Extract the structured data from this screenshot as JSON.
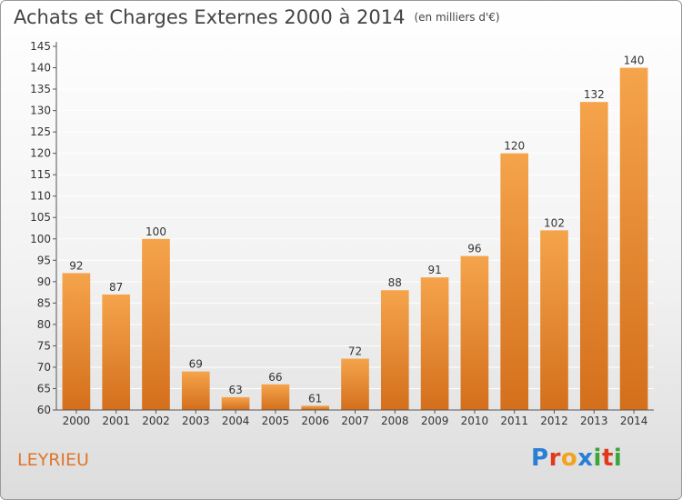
{
  "header": {
    "title": "Achats et Charges Externes 2000 à 2014",
    "unit": "(en milliers d'€)"
  },
  "footer": {
    "place": "LEYRIEU",
    "brand": "Proxiti",
    "brand_colors": [
      "#2a7fd4",
      "#e03a1e",
      "#f3a21b",
      "#2a7fd4",
      "#3aa63a",
      "#e03a1e",
      "#3aa63a"
    ]
  },
  "colors": {
    "bar_light": "#f5a44c",
    "bar_dark": "#d46f1c",
    "grid": "#ffffff",
    "axis": "#555555"
  },
  "chart_data": {
    "type": "bar",
    "title": "Achats et Charges Externes 2000 à 2014",
    "subtitle": "(en milliers d'€)",
    "xlabel": "",
    "ylabel": "",
    "categories": [
      "2000",
      "2001",
      "2002",
      "2003",
      "2004",
      "2005",
      "2006",
      "2007",
      "2008",
      "2009",
      "2010",
      "2011",
      "2012",
      "2013",
      "2014"
    ],
    "values": [
      92,
      87,
      100,
      69,
      63,
      66,
      61,
      72,
      88,
      91,
      96,
      120,
      102,
      132,
      140
    ],
    "ylim": [
      60,
      145
    ],
    "yticks": [
      60,
      65,
      70,
      75,
      80,
      85,
      90,
      95,
      100,
      105,
      110,
      115,
      120,
      125,
      130,
      135,
      140,
      145
    ],
    "grid": true,
    "legend": "none"
  }
}
